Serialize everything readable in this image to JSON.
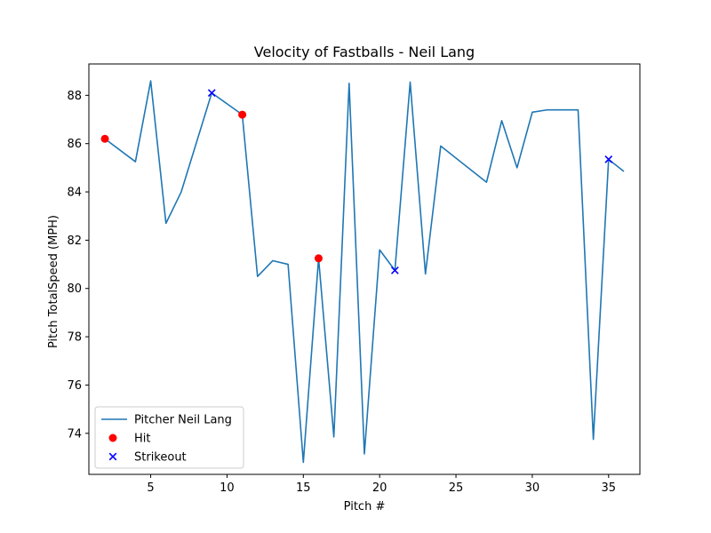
{
  "chart_data": {
    "type": "line",
    "title": "Velocity of Fastballs - Neil Lang",
    "xlabel": "Pitch #",
    "ylabel": "Pitch TotalSpeed (MPH)",
    "xlim": [
      0.95,
      37.05
    ],
    "ylim": [
      72.3,
      89.3
    ],
    "xticks": [
      5,
      10,
      15,
      20,
      25,
      30,
      35
    ],
    "yticks": [
      74,
      76,
      78,
      80,
      82,
      84,
      86,
      88
    ],
    "grid": false,
    "legend_position": "lower-left",
    "series": [
      {
        "name": "Pitcher Neil Lang",
        "kind": "line",
        "color": "#1f77b4",
        "x": [
          2,
          4,
          5,
          6,
          7,
          9,
          11,
          12,
          13,
          14,
          15,
          16,
          17,
          18,
          19,
          20,
          21,
          22,
          23,
          24,
          27,
          28,
          29,
          30,
          31,
          33,
          34,
          35,
          36
        ],
        "y": [
          86.2,
          85.25,
          88.6,
          82.7,
          84.0,
          88.1,
          87.2,
          80.5,
          81.15,
          81.0,
          72.8,
          81.25,
          73.85,
          88.5,
          73.15,
          81.6,
          80.75,
          88.55,
          80.6,
          85.9,
          84.4,
          86.95,
          85.0,
          87.3,
          87.4,
          87.4,
          73.75,
          85.35,
          84.85
        ]
      },
      {
        "name": "Hit",
        "kind": "scatter",
        "marker": "circle",
        "color": "#ff0000",
        "x": [
          2,
          11,
          16
        ],
        "y": [
          86.2,
          87.2,
          81.25
        ]
      },
      {
        "name": "Strikeout",
        "kind": "scatter",
        "marker": "x",
        "color": "#0000ff",
        "x": [
          9,
          21,
          35
        ],
        "y": [
          88.1,
          80.75,
          85.35
        ]
      }
    ]
  }
}
